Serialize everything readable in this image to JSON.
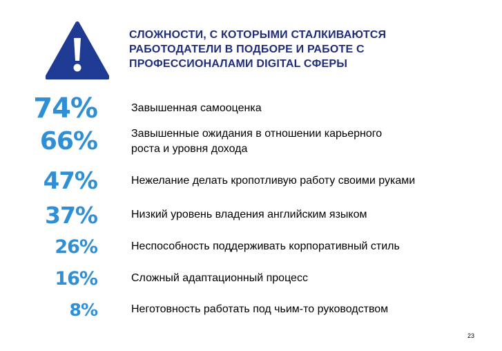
{
  "title_lines": [
    "СЛОЖНОСТИ, С КОТОРЫМИ СТАЛКИВАЮТСЯ",
    "РАБОТОДАТЕЛИ В ПОДБОРЕ И РАБОТЕ С",
    "ПРОФЕССИОНАЛАМИ DIGITAL СФЕРЫ"
  ],
  "icon": "warning-triangle-icon",
  "colors": {
    "title": "#1f2d78",
    "percent": "#2f8fd6",
    "icon_fill": "#1f3a93",
    "icon_mark": "#ffffff"
  },
  "chart_data": {
    "type": "table",
    "title": "СЛОЖНОСТИ, С КОТОРЫМИ СТАЛКИВАЮТСЯ РАБОТОДАТЕЛИ В ПОДБОРЕ И РАБОТЕ С ПРОФЕССИОНАЛАМИ DIGITAL СФЕРЫ",
    "rows": [
      {
        "value": 74,
        "percent_label": "74%",
        "label_lines": [
          "Завышенная самооценка"
        ]
      },
      {
        "value": 66,
        "percent_label": "66%",
        "label_lines": [
          "Завышенные ожидания в отношении карьерного",
          "роста и уровня дохода"
        ]
      },
      {
        "value": 47,
        "percent_label": "47%",
        "label_lines": [
          "Нежелание делать кропотливую работу своими руками"
        ]
      },
      {
        "value": 37,
        "percent_label": "37%",
        "label_lines": [
          "Низкий уровень владения английским языком"
        ]
      },
      {
        "value": 26,
        "percent_label": "26%",
        "label_lines": [
          "Неспособность поддерживать корпоративный стиль"
        ]
      },
      {
        "value": 16,
        "percent_label": "16%",
        "label_lines": [
          "Сложный адаптационный процесс"
        ]
      },
      {
        "value": 8,
        "percent_label": "8%",
        "label_lines": [
          "Неготовность работать под чьим-то руководством"
        ]
      }
    ]
  },
  "page_number": "23"
}
